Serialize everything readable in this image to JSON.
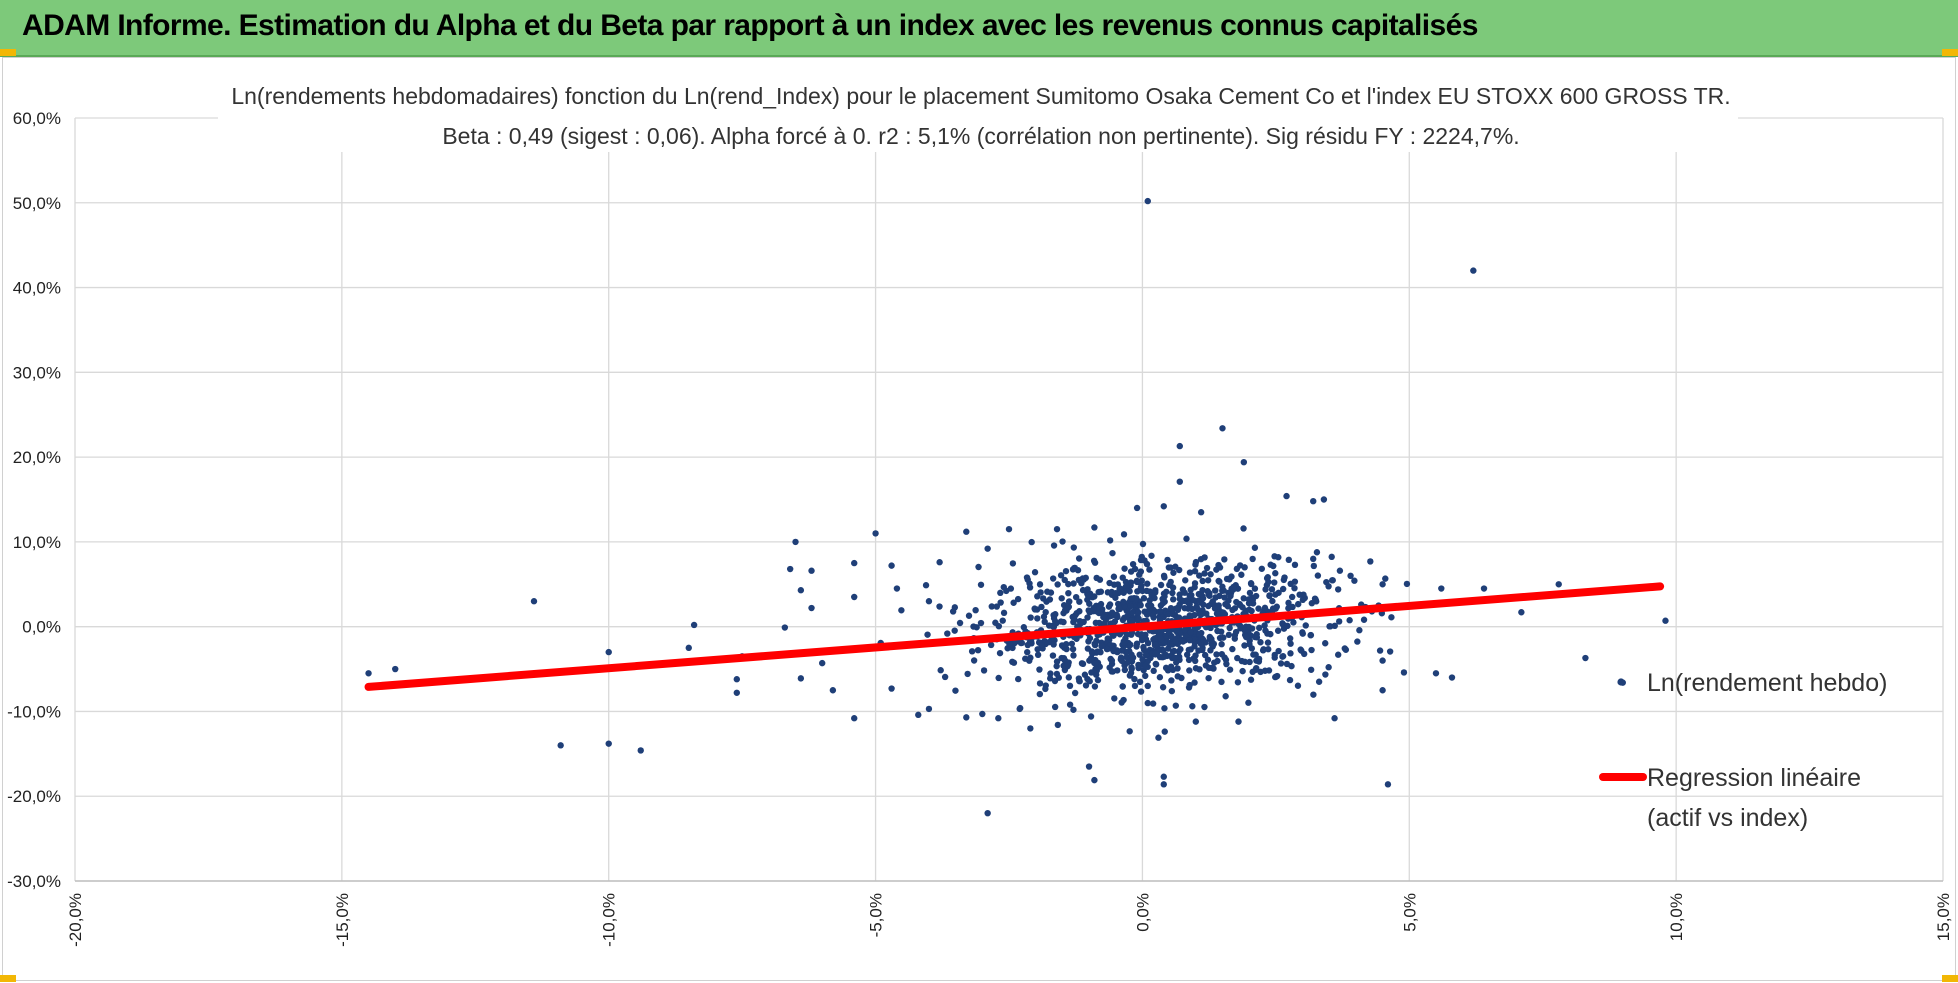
{
  "banner": {
    "title": "ADAM Informe. Estimation du Alpha et du Beta par rapport à un index avec les revenus connus capitalisés",
    "background": "#7dc97a",
    "corner_accent": "#f2b705"
  },
  "chart_data": {
    "type": "scatter",
    "title_lines": [
      "Ln(rendements hebdomadaires) fonction du Ln(rend_Index) pour le placement Sumitomo Osaka Cement Co  et l'index EU STOXX 600 GROSS TR.",
      "Beta : 0,49 (sigest : 0,06). Alpha forcé à 0. r2 : 5,1% (corrélation non pertinente). Sig résidu FY : 2224,7%."
    ],
    "xlabel": "",
    "ylabel": "",
    "xlim": [
      -0.2,
      0.15
    ],
    "ylim": [
      -0.3,
      0.6
    ],
    "x_ticks": [
      -0.2,
      -0.15,
      -0.1,
      -0.05,
      0.0,
      0.05,
      0.1,
      0.15
    ],
    "x_tick_labels": [
      "-20,0%",
      "-15,0%",
      "-10,0%",
      "-5,0%",
      "0,0%",
      "5,0%",
      "10,0%",
      "15,0%"
    ],
    "y_ticks": [
      -0.3,
      -0.2,
      -0.1,
      0.0,
      0.1,
      0.2,
      0.3,
      0.4,
      0.5,
      0.6
    ],
    "y_tick_labels": [
      "-30,0%",
      "-20,0%",
      "-10,0%",
      "0,0%",
      "10,0%",
      "20,0%",
      "30,0%",
      "40,0%",
      "50,0%",
      "60,0%"
    ],
    "grid": true,
    "legend_position": "right",
    "series": [
      {
        "name": "Ln(rendement hebdo)",
        "kind": "scatter",
        "color": "#1f3f78",
        "points": [
          [
            0.001,
            0.502
          ],
          [
            0.062,
            0.42
          ],
          [
            0.015,
            0.234
          ],
          [
            0.007,
            0.213
          ],
          [
            0.019,
            0.194
          ],
          [
            0.007,
            0.171
          ],
          [
            0.027,
            0.154
          ],
          [
            0.034,
            0.15
          ],
          [
            0.032,
            0.148
          ],
          [
            -0.001,
            0.14
          ],
          [
            0.004,
            0.142
          ],
          [
            0.011,
            0.135
          ],
          [
            -0.009,
            0.117
          ],
          [
            -0.033,
            0.112
          ],
          [
            -0.025,
            0.115
          ],
          [
            -0.016,
            0.115
          ],
          [
            -0.05,
            0.11
          ],
          [
            -0.065,
            0.1
          ],
          [
            -0.038,
            0.076
          ],
          [
            -0.054,
            0.075
          ],
          [
            -0.066,
            0.068
          ],
          [
            -0.062,
            0.066
          ],
          [
            -0.047,
            0.072
          ],
          [
            -0.029,
            0.092
          ],
          [
            -0.046,
            0.045
          ],
          [
            -0.064,
            0.043
          ],
          [
            -0.054,
            0.035
          ],
          [
            -0.04,
            0.03
          ],
          [
            -0.062,
            0.022
          ],
          [
            -0.114,
            0.03
          ],
          [
            -0.084,
            0.002
          ],
          [
            -0.085,
            -0.025
          ],
          [
            -0.067,
            -0.001
          ],
          [
            -0.075,
            -0.035
          ],
          [
            -0.076,
            -0.062
          ],
          [
            -0.076,
            -0.078
          ],
          [
            -0.064,
            -0.061
          ],
          [
            -0.06,
            -0.043
          ],
          [
            -0.058,
            -0.075
          ],
          [
            -0.054,
            -0.108
          ],
          [
            -0.047,
            -0.073
          ],
          [
            -0.042,
            -0.104
          ],
          [
            -0.04,
            -0.097
          ],
          [
            -0.033,
            -0.107
          ],
          [
            -0.03,
            -0.103
          ],
          [
            -0.027,
            -0.108
          ],
          [
            -0.021,
            -0.12
          ],
          [
            -0.023,
            -0.097
          ],
          [
            -0.029,
            -0.22
          ],
          [
            -0.1,
            -0.138
          ],
          [
            -0.094,
            -0.146
          ],
          [
            -0.1,
            -0.03
          ],
          [
            -0.145,
            -0.055
          ],
          [
            -0.14,
            -0.05
          ],
          [
            -0.109,
            -0.14
          ],
          [
            -0.01,
            -0.165
          ],
          [
            -0.009,
            -0.181
          ],
          [
            0.004,
            -0.177
          ],
          [
            0.004,
            -0.186
          ],
          [
            0.003,
            -0.131
          ],
          [
            0.01,
            -0.112
          ],
          [
            0.018,
            -0.112
          ],
          [
            0.036,
            -0.108
          ],
          [
            0.046,
            -0.186
          ],
          [
            0.045,
            -0.075
          ],
          [
            0.049,
            -0.054
          ],
          [
            0.045,
            -0.04
          ],
          [
            0.055,
            -0.055
          ],
          [
            0.058,
            -0.06
          ],
          [
            0.083,
            -0.037
          ],
          [
            0.09,
            -0.066
          ],
          [
            0.098,
            0.007
          ],
          [
            0.078,
            0.05
          ],
          [
            0.071,
            0.017
          ],
          [
            0.056,
            0.045
          ],
          [
            0.064,
            0.045
          ],
          [
            0.045,
            0.05
          ],
          [
            0.037,
            0.066
          ],
          [
            0.039,
            0.06
          ],
          [
            0.032,
            0.08
          ],
          [
            0.041,
            0.026
          ],
          [
            0.043,
            0.018
          ]
        ],
        "core_cloud": {
          "count": 1150,
          "x_center": 0.003,
          "y_center": 0.001,
          "x_spread": 0.016,
          "y_spread": 0.037
        }
      },
      {
        "name": "Regression linéaire (actif vs index)",
        "legend_lines": [
          "Regression linéaire",
          "(actif vs index)"
        ],
        "kind": "line",
        "color": "#ff0000",
        "slope": 0.49,
        "intercept": 0,
        "x_range": [
          -0.145,
          0.097
        ]
      }
    ]
  }
}
